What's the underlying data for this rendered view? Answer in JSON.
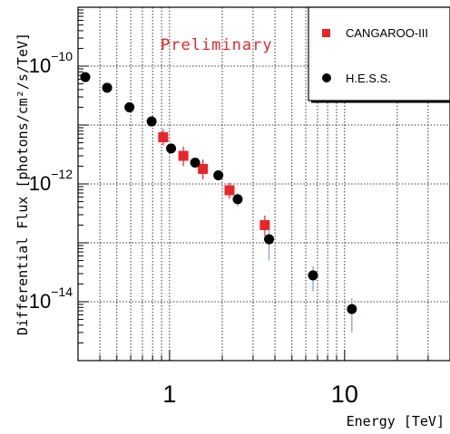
{
  "chart_data": {
    "type": "scatter",
    "title": "",
    "annotation": "Preliminary",
    "xlabel": "Energy [TeV]",
    "ylabel": "Differential Flux [photons/cm²/s/TeV]",
    "xscale": "log",
    "yscale": "log",
    "xlim": [
      0.3,
      40
    ],
    "ylim": [
      1e-15,
      1e-09
    ],
    "x_tick_labels": [
      "1",
      "10"
    ],
    "y_tick_labels": [
      {
        "base": "10",
        "exp": "−10"
      },
      {
        "base": "10",
        "exp": "−12"
      },
      {
        "base": "10",
        "exp": "−14"
      }
    ],
    "grid": true,
    "legend_position": "top-right",
    "series": [
      {
        "name": "CANGAROO-III",
        "marker": "square",
        "color": "#e8262a",
        "errcolor": "#e8262a",
        "points": [
          {
            "x": 0.92,
            "y": 6.2e-12,
            "ylo": 4.5e-12,
            "yhi": 8.5e-12
          },
          {
            "x": 1.2,
            "y": 3e-12,
            "ylo": 2e-12,
            "yhi": 4.3e-12
          },
          {
            "x": 1.55,
            "y": 1.8e-12,
            "ylo": 1.2e-12,
            "yhi": 2.6e-12
          },
          {
            "x": 2.2,
            "y": 7.8e-13,
            "ylo": 5.6e-13,
            "yhi": 1.05e-12
          },
          {
            "x": 3.5,
            "y": 2e-13,
            "ylo": 1.3e-13,
            "yhi": 2.9e-13
          }
        ]
      },
      {
        "name": "H.E.S.S.",
        "marker": "circle",
        "color": "#000000",
        "errcolor": "#7a9ecf",
        "points": [
          {
            "x": 0.33,
            "y": 6.5e-11,
            "ylo": 6e-11,
            "yhi": 7e-11
          },
          {
            "x": 0.44,
            "y": 4.3e-11,
            "ylo": 4e-11,
            "yhi": 4.6e-11
          },
          {
            "x": 0.59,
            "y": 2e-11,
            "ylo": 1.85e-11,
            "yhi": 2.15e-11
          },
          {
            "x": 0.79,
            "y": 1.15e-11,
            "ylo": 1.05e-11,
            "yhi": 1.25e-11
          },
          {
            "x": 1.02,
            "y": 4e-12,
            "ylo": 3.6e-12,
            "yhi": 4.4e-12
          },
          {
            "x": 1.4,
            "y": 2.3e-12,
            "ylo": 2.05e-12,
            "yhi": 2.55e-12
          },
          {
            "x": 1.9,
            "y": 1.4e-12,
            "ylo": 1.22e-12,
            "yhi": 1.6e-12
          },
          {
            "x": 2.45,
            "y": 5.5e-13,
            "ylo": 4.2e-13,
            "yhi": 7e-13
          },
          {
            "x": 3.7,
            "y": 1.15e-13,
            "ylo": 5e-14,
            "yhi": 1.8e-13
          },
          {
            "x": 6.6,
            "y": 2.8e-14,
            "ylo": 1.5e-14,
            "yhi": 4e-14
          },
          {
            "x": 11.0,
            "y": 7.5e-15,
            "ylo": 3e-15,
            "yhi": 1.15e-14
          }
        ]
      }
    ]
  }
}
